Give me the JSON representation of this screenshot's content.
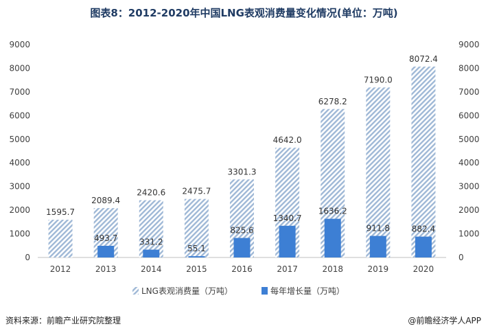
{
  "chart_data": {
    "type": "bar",
    "title": "图表8：2012-2020年中国LNG表观消费量变化情况(单位：万吨)",
    "categories": [
      "2012",
      "2013",
      "2014",
      "2015",
      "2016",
      "2017",
      "2018",
      "2019",
      "2020"
    ],
    "series": [
      {
        "name": "LNG表观消费量（万吨）",
        "values": [
          1595.7,
          2089.4,
          2420.6,
          2475.7,
          3301.3,
          4642.0,
          6278.2,
          7190.0,
          8072.4
        ],
        "color": "#9fb8d6",
        "pattern": "diagonal-hatch"
      },
      {
        "name": "每年增长量（万吨）",
        "values": [
          null,
          493.7,
          331.2,
          55.1,
          825.6,
          1340.7,
          1636.2,
          911.8,
          882.4
        ],
        "color": "#3d7fd4"
      }
    ],
    "ylim": [
      0,
      9000
    ],
    "yticks": [
      0,
      1000,
      2000,
      3000,
      4000,
      5000,
      6000,
      7000,
      8000,
      9000
    ],
    "y2lim": [
      0,
      9000
    ],
    "y2ticks": [
      0,
      1000,
      2000,
      3000,
      4000,
      5000,
      6000,
      7000,
      8000,
      9000
    ],
    "grid": false,
    "legend_position": "bottom"
  },
  "footer": {
    "source": "资料来源：前瞻产业研究院整理",
    "brand": "@前瞻经济学人APP"
  }
}
